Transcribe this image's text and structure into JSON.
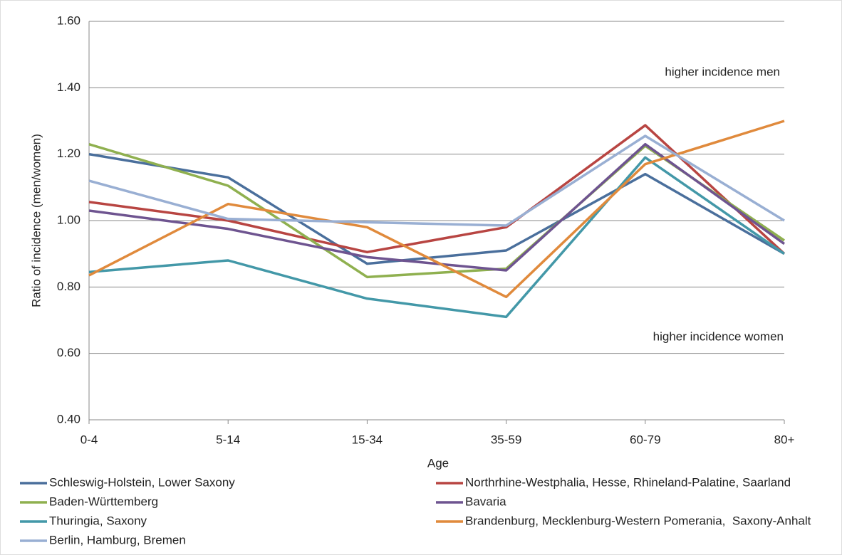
{
  "chart_data": {
    "type": "line",
    "x_label": "Age",
    "y_label": "Ratio of incidence (men/women)",
    "annotations": [
      "higher incidence men",
      "higher incidence women"
    ],
    "categories": [
      "0-4",
      "5-14",
      "15-34",
      "35-59",
      "60-79",
      "80+"
    ],
    "ylim": [
      0.4,
      1.6
    ],
    "yticks": [
      {
        "value": 0.4,
        "label": "0.40"
      },
      {
        "value": 0.6,
        "label": "0.60"
      },
      {
        "value": 0.8,
        "label": "0.80"
      },
      {
        "value": 1.0,
        "label": "1.00"
      },
      {
        "value": 1.2,
        "label": "1.20"
      },
      {
        "value": 1.4,
        "label": "1.40"
      },
      {
        "value": 1.6,
        "label": "1.60"
      }
    ],
    "grid": true,
    "series": [
      {
        "name": "Schleswig-Holstein, Lower Saxony",
        "color": "#4a6f9c",
        "values": [
          1.2,
          1.13,
          0.87,
          0.91,
          1.14,
          0.9
        ]
      },
      {
        "name": "Northrhine-Westphalia, Hesse, Rhineland-Palatine, Saarland",
        "color": "#b84542",
        "values": [
          1.056,
          1.0,
          0.905,
          0.98,
          1.287,
          0.9
        ]
      },
      {
        "name": "Baden-Württemberg",
        "color": "#8fb04f",
        "values": [
          1.23,
          1.105,
          0.83,
          0.855,
          1.225,
          0.94
        ]
      },
      {
        "name": "Bavaria",
        "color": "#6e5490",
        "values": [
          1.03,
          0.975,
          0.89,
          0.85,
          1.23,
          0.93
        ]
      },
      {
        "name": "Thuringia, Saxony",
        "color": "#4398a8",
        "values": [
          0.845,
          0.88,
          0.765,
          0.71,
          1.19,
          0.9
        ]
      },
      {
        "name": "Brandenburg, Mecklenburg-Western Pomerania,  Saxony-Anhalt",
        "color": "#e08a3c",
        "values": [
          0.835,
          1.05,
          0.98,
          0.77,
          1.17,
          1.3
        ]
      },
      {
        "name": "Berlin, Hamburg, Bremen",
        "color": "#99afd3",
        "values": [
          1.12,
          1.005,
          0.995,
          0.985,
          1.255,
          1.0
        ]
      }
    ]
  }
}
